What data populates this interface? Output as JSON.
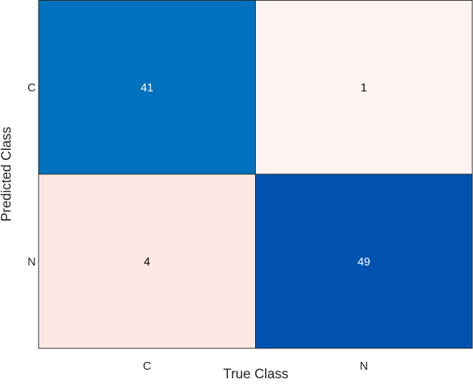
{
  "chart_data": {
    "type": "heatmap",
    "subtype": "confusion-matrix",
    "xlabel": "True Class",
    "ylabel": "Predicted Class",
    "x_categories": [
      "C",
      "N"
    ],
    "y_categories": [
      "C",
      "N"
    ],
    "matrix": [
      [
        41,
        1
      ],
      [
        4,
        49
      ]
    ],
    "colors": {
      "high_diag_1": "#0072BD",
      "high_diag_2": "#0051B0",
      "low_offdiag_1": "#FEF3F0",
      "low_offdiag_2": "#FDE8E3",
      "text_on_dark": "#FFFFFF",
      "text_on_light": "#000000",
      "grid": "#262626"
    },
    "cell_colors": [
      [
        "#0072BD",
        "#FEF3F0"
      ],
      [
        "#FDE8E3",
        "#0051B0"
      ]
    ],
    "text_colors": [
      [
        "#FFFFFF",
        "#000000"
      ],
      [
        "#000000",
        "#FFFFFF"
      ]
    ]
  }
}
